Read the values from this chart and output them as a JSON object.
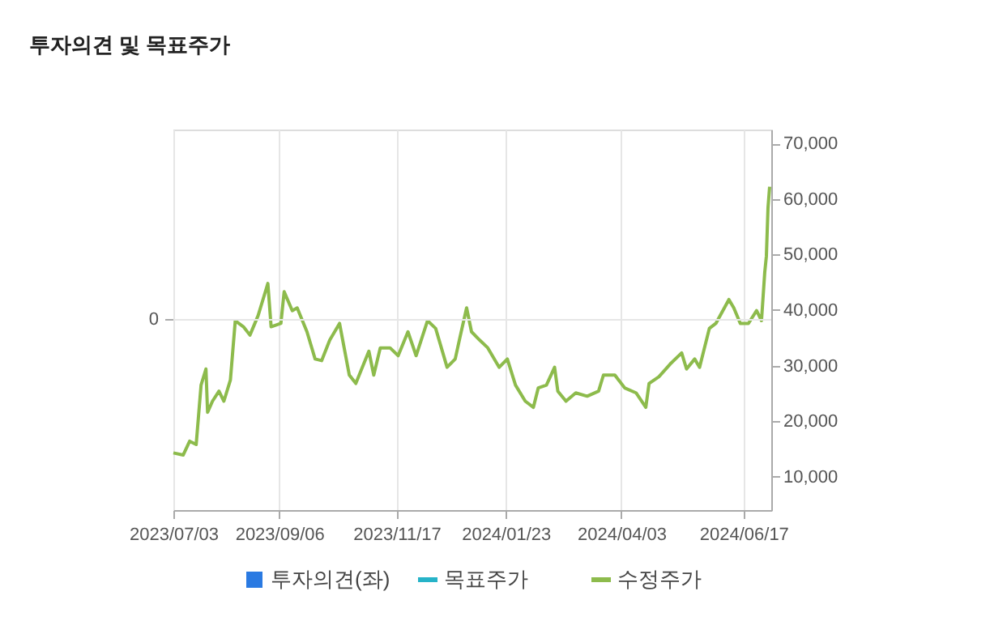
{
  "chart_data": {
    "type": "line",
    "title": "투자의견 및 목표주가",
    "xlim": [
      "2023-07-03",
      "2024-07-04"
    ],
    "xticks": [
      {
        "value": "2023-07-03",
        "label": "2023/07/03"
      },
      {
        "value": "2023-09-06",
        "label": "2023/09/06"
      },
      {
        "value": "2023-11-17",
        "label": "2023/11/17"
      },
      {
        "value": "2024-01-23",
        "label": "2024/01/23"
      },
      {
        "value": "2024-04-03",
        "label": "2024/04/03"
      },
      {
        "value": "2024-06-17",
        "label": "2024/06/17"
      }
    ],
    "annotations": [
      "0"
    ],
    "y2lim": [
      4000,
      72500
    ],
    "y2ticks": [
      {
        "value": 10000,
        "label": "10,000"
      },
      {
        "value": 20000,
        "label": "20,000"
      },
      {
        "value": 30000,
        "label": "30,000"
      },
      {
        "value": 40000,
        "label": "40,000"
      },
      {
        "value": 50000,
        "label": "50,000"
      },
      {
        "value": 60000,
        "label": "60,000"
      },
      {
        "value": 70000,
        "label": "70,000"
      }
    ],
    "grid": true,
    "legend": "bottom",
    "series": [
      {
        "name": "투자의견(좌)",
        "type": "bar",
        "color": "#2a7ae2"
      },
      {
        "name": "목표주가",
        "color": "#26b3c8"
      },
      {
        "name": "수정주가",
        "color": "#8dbb4c",
        "axis": "y2",
        "x": [
          "2023-07-03",
          "2023-07-09",
          "2023-07-13",
          "2023-07-17",
          "2023-07-20",
          "2023-07-23",
          "2023-07-24",
          "2023-07-27",
          "2023-07-31",
          "2023-08-03",
          "2023-08-07",
          "2023-08-10",
          "2023-08-15",
          "2023-08-19",
          "2023-08-24",
          "2023-08-27",
          "2023-08-30",
          "2023-09-01",
          "2023-09-07",
          "2023-09-09",
          "2023-09-14",
          "2023-09-17",
          "2023-09-23",
          "2023-09-28",
          "2023-10-02",
          "2023-10-07",
          "2023-10-13",
          "2023-10-19",
          "2023-10-23",
          "2023-10-31",
          "2023-11-03",
          "2023-11-07",
          "2023-11-13",
          "2023-11-18",
          "2023-11-24",
          "2023-11-29",
          "2023-12-06",
          "2023-12-11",
          "2023-12-18",
          "2023-12-23",
          "2023-12-26",
          "2023-12-30",
          "2024-01-02",
          "2024-01-07",
          "2024-01-12",
          "2024-01-19",
          "2024-01-24",
          "2024-01-29",
          "2024-02-04",
          "2024-02-09",
          "2024-02-12",
          "2024-02-17",
          "2024-02-22",
          "2024-02-24",
          "2024-02-29",
          "2024-03-06",
          "2024-03-13",
          "2024-03-20",
          "2024-03-23",
          "2024-03-30",
          "2024-04-05",
          "2024-04-12",
          "2024-04-18",
          "2024-04-20",
          "2024-04-26",
          "2024-05-03",
          "2024-05-10",
          "2024-05-13",
          "2024-05-18",
          "2024-05-21",
          "2024-05-27",
          "2024-05-31",
          "2024-06-08",
          "2024-06-11",
          "2024-06-15",
          "2024-06-20",
          "2024-06-25",
          "2024-06-28",
          "2024-06-30",
          "2024-07-01",
          "2024-07-02",
          "2024-07-03"
        ],
        "values": [
          14300,
          13900,
          16400,
          15800,
          26500,
          29400,
          21600,
          23600,
          25400,
          23600,
          27400,
          38100,
          37000,
          35500,
          39000,
          41900,
          44800,
          37000,
          37600,
          43300,
          39900,
          40400,
          36100,
          31200,
          30900,
          34600,
          37600,
          28300,
          26800,
          32600,
          28300,
          33200,
          33200,
          31800,
          36100,
          31800,
          38100,
          36700,
          29700,
          31200,
          35200,
          40400,
          36100,
          34600,
          33200,
          29700,
          31200,
          26500,
          23600,
          22500,
          26000,
          26500,
          29700,
          25400,
          23600,
          25100,
          24500,
          25400,
          28300,
          28300,
          26000,
          25100,
          22500,
          26800,
          28000,
          30300,
          32300,
          29400,
          31200,
          29700,
          36700,
          37600,
          41900,
          40400,
          37600,
          37600,
          39900,
          38100,
          46800,
          49700,
          58400,
          62200
        ]
      }
    ]
  }
}
